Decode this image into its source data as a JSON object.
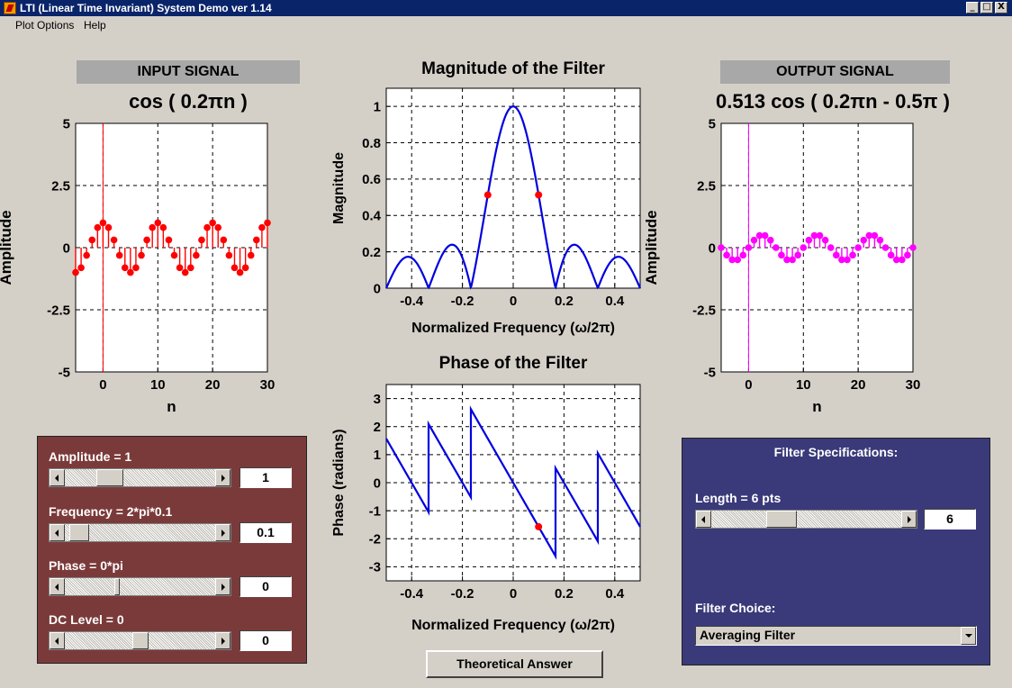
{
  "window": {
    "title": "LTI (Linear Time Invariant) System Demo ver 1.14",
    "buttons": {
      "minimize": "_",
      "maximize": "□",
      "close": "X"
    }
  },
  "menu": [
    {
      "label": "Plot Options"
    },
    {
      "label": "Help"
    }
  ],
  "input": {
    "header": "INPUT SIGNAL",
    "formula": "cos ( 0.2πn )",
    "xlabel": "n",
    "ylabel": "Amplitude",
    "yticks": [
      "5",
      "2.5",
      "0",
      "-2.5",
      "-5"
    ],
    "xticks": [
      "0",
      "10",
      "20",
      "30"
    ]
  },
  "output": {
    "header": "OUTPUT SIGNAL",
    "formula": "0.513 cos ( 0.2πn - 0.5π )",
    "xlabel": "n",
    "ylabel": "Amplitude",
    "yticks": [
      "5",
      "2.5",
      "0",
      "-2.5",
      "-5"
    ],
    "xticks": [
      "0",
      "10",
      "20",
      "30"
    ]
  },
  "magnitude": {
    "title": "Magnitude of the Filter",
    "xlabel": "Normalized Frequency (ω/2π)",
    "ylabel": "Magnitude",
    "yticks": [
      "1",
      "0.8",
      "0.6",
      "0.4",
      "0.2",
      "0"
    ],
    "xticks": [
      "-0.4",
      "-0.2",
      "0",
      "0.2",
      "0.4"
    ]
  },
  "phase": {
    "title": "Phase of the Filter",
    "xlabel": "Normalized Frequency (ω/2π)",
    "ylabel": "Phase (radians)",
    "yticks": [
      "3",
      "2",
      "1",
      "0",
      "-1",
      "-2",
      "-3"
    ],
    "xticks": [
      "-0.4",
      "-0.2",
      "0",
      "0.2",
      "0.4"
    ]
  },
  "controls": {
    "amplitude": {
      "label": "Amplitude = 1",
      "value": "1",
      "slider_fraction": 0.25
    },
    "frequency": {
      "label": "Frequency = 2*pi*0.1",
      "value": "0.1",
      "slider_fraction": 0.05
    },
    "phase": {
      "label": "Phase = 0*pi",
      "value": "0",
      "slider_fraction": 0.4
    },
    "dc_level": {
      "label": "DC Level = 0",
      "value": "0",
      "slider_fraction": 0.5
    }
  },
  "filter": {
    "heading": "Filter Specifications:",
    "length_label": "Length = 6 pts",
    "length_value": "6",
    "length_slider_fraction": 0.3,
    "choice_label": "Filter Choice:",
    "choice_value": "Averaging Filter"
  },
  "theoretical_button": "Theoretical Answer",
  "colors": {
    "input_stem": "#ff0000",
    "output_stem": "#ff00ff",
    "response_line": "#0000e0",
    "marker": "#ff0000",
    "left_panel": "#7b3a3a",
    "right_panel": "#3a3a7a"
  },
  "chart_data": [
    {
      "type": "stem",
      "name": "input",
      "x": [
        -5,
        -4,
        -3,
        -2,
        -1,
        0,
        1,
        2,
        3,
        4,
        5,
        6,
        7,
        8,
        9,
        10,
        11,
        12,
        13,
        14,
        15,
        16,
        17,
        18,
        19,
        20,
        21,
        22,
        23,
        24,
        25,
        26,
        27,
        28,
        29,
        30
      ],
      "formula": "cos(0.2*pi*n)",
      "xlim": [
        -5,
        30
      ],
      "ylim": [
        -5,
        5
      ],
      "grid": true
    },
    {
      "type": "line",
      "name": "magnitude",
      "formula": "|sin(6*pi*f)/(6*sin(pi*f))|",
      "xlim": [
        -0.5,
        0.5
      ],
      "ylim": [
        0,
        1.1
      ],
      "grid": true,
      "markers": [
        {
          "x": -0.1,
          "y": 0.513
        },
        {
          "x": 0.1,
          "y": 0.513
        }
      ]
    },
    {
      "type": "line",
      "name": "phase",
      "formula": "-5*pi*f with jumps of pi at sinc zeros",
      "xlim": [
        -0.5,
        0.5
      ],
      "ylim": [
        -3.5,
        3.5
      ],
      "grid": true,
      "markers": [
        {
          "x": 0.1,
          "y": -1.571
        }
      ]
    },
    {
      "type": "stem",
      "name": "output",
      "formula": "0.513*cos(0.2*pi*n - 0.5*pi)",
      "x": [
        -5,
        -4,
        -3,
        -2,
        -1,
        0,
        1,
        2,
        3,
        4,
        5,
        6,
        7,
        8,
        9,
        10,
        11,
        12,
        13,
        14,
        15,
        16,
        17,
        18,
        19,
        20,
        21,
        22,
        23,
        24,
        25,
        26,
        27,
        28,
        29,
        30
      ],
      "xlim": [
        -5,
        30
      ],
      "ylim": [
        -5,
        5
      ],
      "grid": true
    }
  ]
}
